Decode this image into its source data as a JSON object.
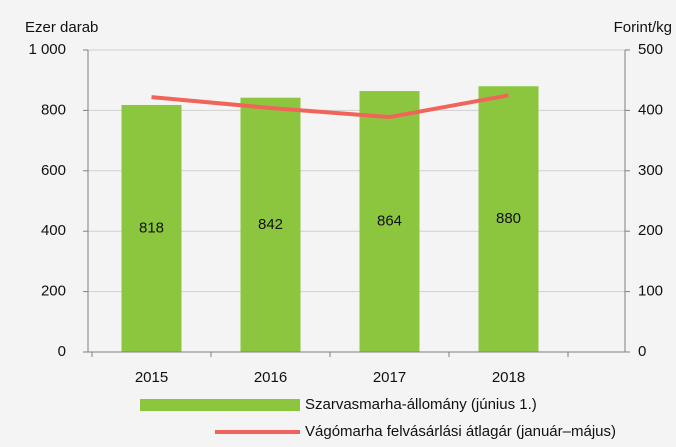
{
  "chart_data": {
    "type": "bar_line",
    "y_label": "Ezer darab",
    "y2_label": "Forint/kg",
    "categories": [
      "2015",
      "2016",
      "2017",
      "2018"
    ],
    "series": [
      {
        "name": "Szarvasmarha-állomány (június 1.)",
        "type": "bar",
        "color": "#8cc63f",
        "values": [
          818,
          842,
          864,
          880
        ]
      },
      {
        "name": "Vágómarha felvásárlási átlagár (január–május)",
        "type": "line",
        "axis": "y2",
        "color": "#f0645a",
        "values": [
          422,
          404,
          389,
          425
        ]
      }
    ],
    "ylim": [
      0,
      1000
    ],
    "yticks": [
      0,
      200,
      400,
      600,
      800,
      {
        "value": 1000,
        "label": "1 000"
      }
    ],
    "y2lim": [
      0,
      500
    ],
    "y2ticks": [
      0,
      100,
      200,
      300,
      400,
      500
    ],
    "grid": true
  }
}
